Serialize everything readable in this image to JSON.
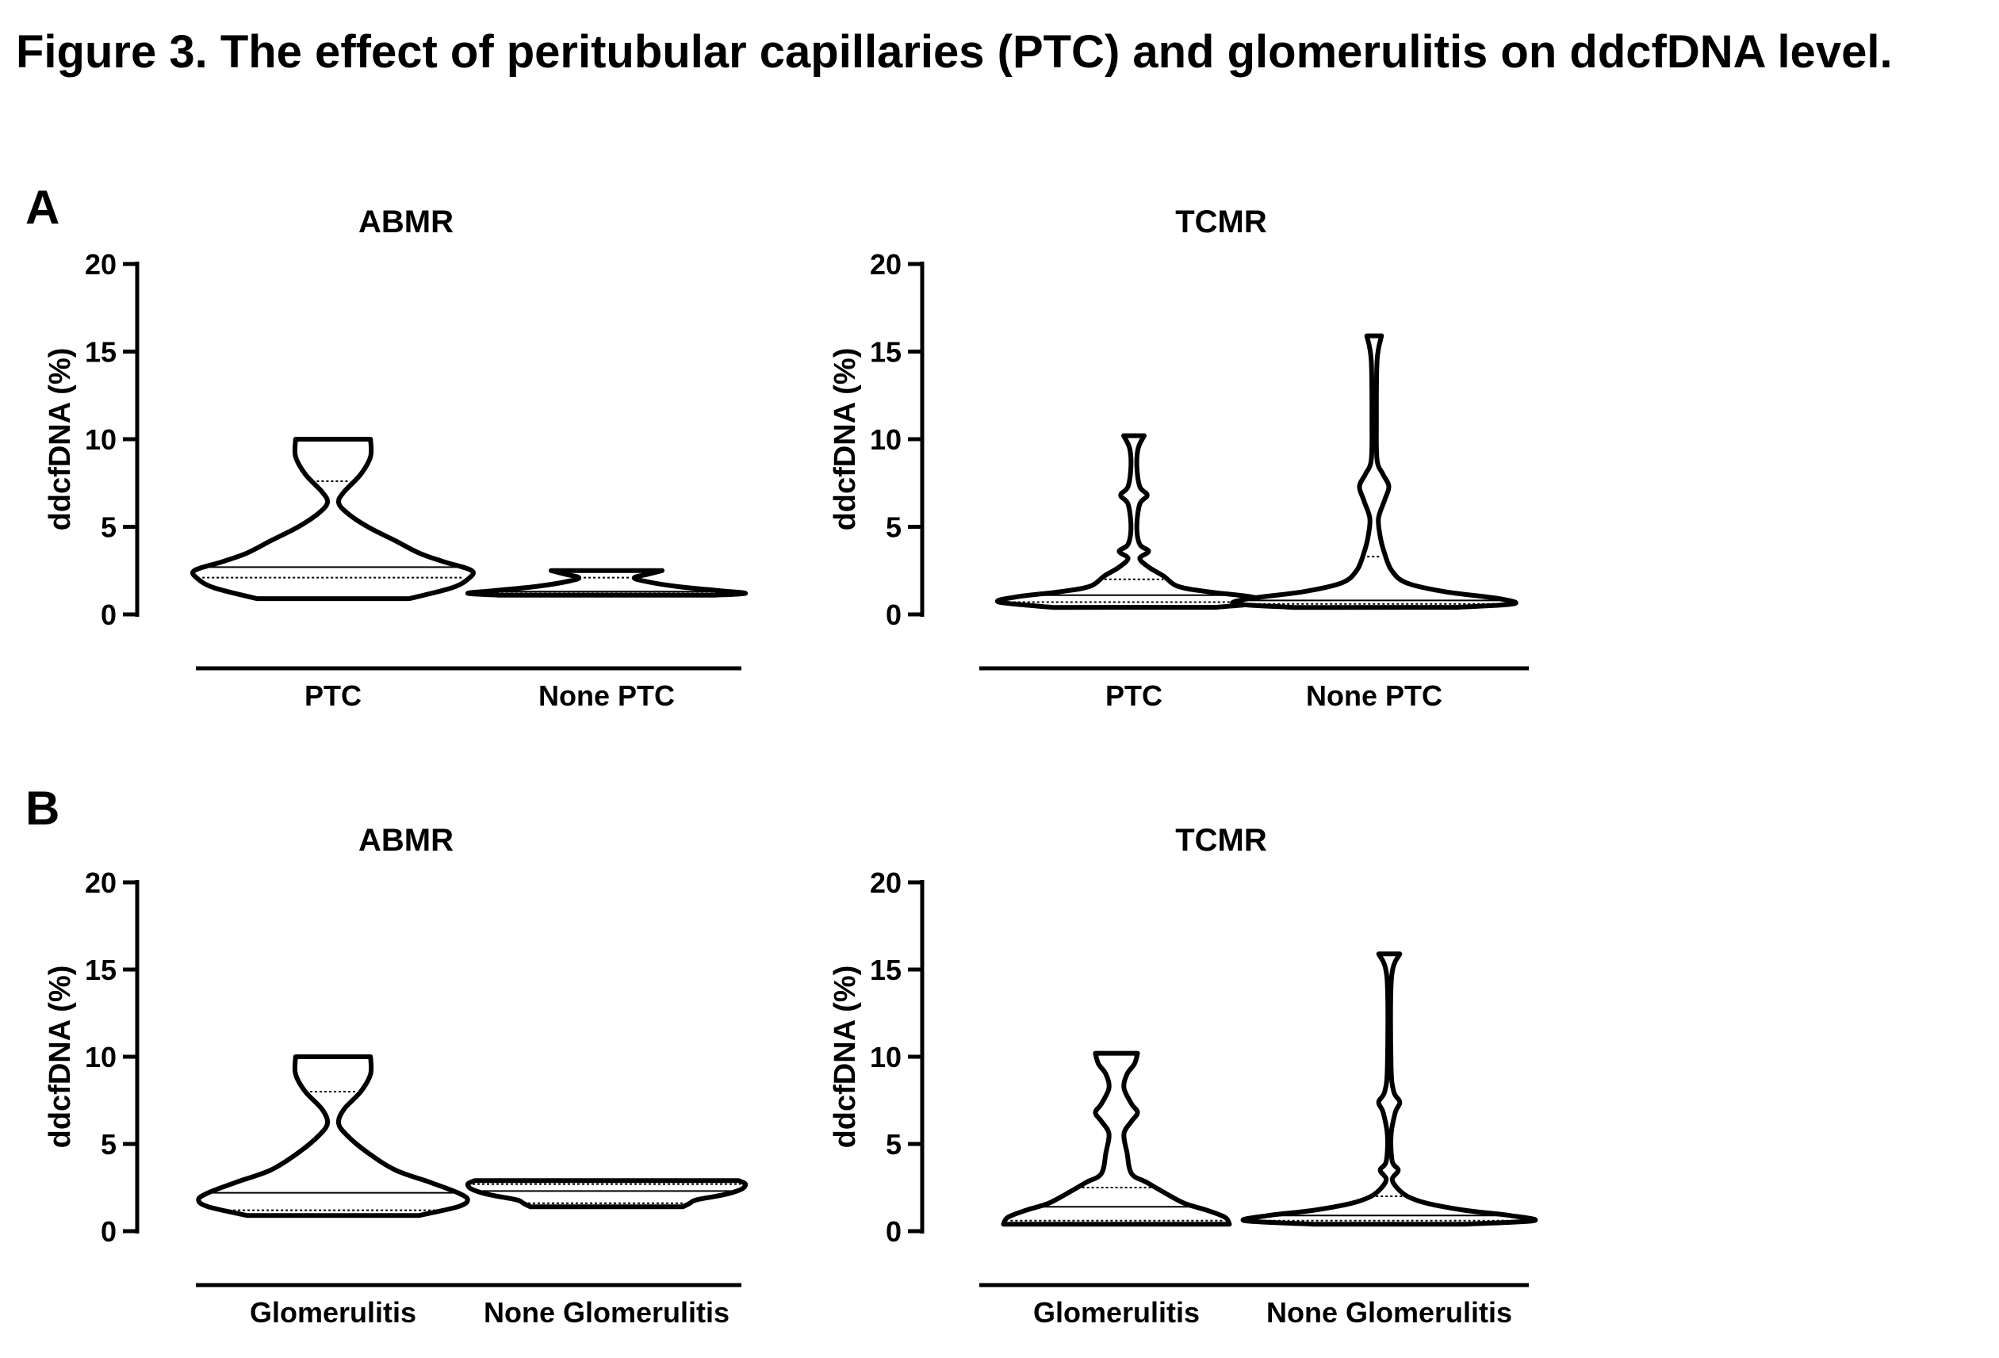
{
  "figure": {
    "title": "Figure 3. The effect of peritubular capillaries (PTC) and glomerulitis on ddcfDNA level."
  },
  "panels": [
    {
      "letter": "A"
    },
    {
      "letter": "B"
    }
  ],
  "chart_data": [
    {
      "type": "violin",
      "panel": "A",
      "title": "ABMR",
      "ylabel": "ddcfDNA  (%)",
      "ylim": [
        0,
        20
      ],
      "yticks": [
        0,
        5,
        10,
        15,
        20
      ],
      "categories": [
        "PTC",
        "None PTC"
      ],
      "series": [
        {
          "category": "PTC",
          "min": 0.9,
          "max": 10.0,
          "median": 2.7,
          "q1": 2.1,
          "q3": 7.6,
          "density": [
            [
              0.9,
              0.55
            ],
            [
              1.5,
              0.85
            ],
            [
              2.0,
              0.97
            ],
            [
              2.5,
              1.0
            ],
            [
              3.0,
              0.8
            ],
            [
              3.5,
              0.62
            ],
            [
              4.2,
              0.45
            ],
            [
              5.0,
              0.25
            ],
            [
              5.8,
              0.1
            ],
            [
              6.4,
              0.04
            ],
            [
              7.0,
              0.08
            ],
            [
              8.0,
              0.2
            ],
            [
              9.0,
              0.27
            ],
            [
              10.0,
              0.27
            ]
          ]
        },
        {
          "category": "None PTC",
          "min": 1.1,
          "max": 2.5,
          "median": 1.3,
          "q1": 1.2,
          "q3": 2.1,
          "density": [
            [
              1.1,
              0.78
            ],
            [
              1.2,
              1.0
            ],
            [
              1.35,
              0.82
            ],
            [
              1.6,
              0.5
            ],
            [
              1.9,
              0.27
            ],
            [
              2.1,
              0.2
            ],
            [
              2.3,
              0.3
            ],
            [
              2.5,
              0.4
            ]
          ]
        }
      ]
    },
    {
      "type": "violin",
      "panel": "A",
      "title": "TCMR",
      "ylabel": "ddcfDNA  (%)",
      "ylim": [
        0,
        20
      ],
      "yticks": [
        0,
        5,
        10,
        15,
        20
      ],
      "categories": [
        "PTC",
        "None PTC"
      ],
      "series": [
        {
          "category": "PTC",
          "min": 0.4,
          "max": 10.2,
          "median": 1.1,
          "q1": 0.7,
          "q3": 2.0,
          "density": [
            [
              0.4,
              0.55
            ],
            [
              0.7,
              0.92
            ],
            [
              1.0,
              0.8
            ],
            [
              1.3,
              0.5
            ],
            [
              1.6,
              0.3
            ],
            [
              2.2,
              0.2
            ],
            [
              2.7,
              0.1
            ],
            [
              3.2,
              0.04
            ],
            [
              3.6,
              0.1
            ],
            [
              4.0,
              0.04
            ],
            [
              5.0,
              0.02
            ],
            [
              6.3,
              0.04
            ],
            [
              6.8,
              0.09
            ],
            [
              7.3,
              0.04
            ],
            [
              8.5,
              0.02
            ],
            [
              9.5,
              0.03
            ],
            [
              10.2,
              0.07
            ]
          ]
        },
        {
          "category": "None PTC",
          "min": 0.4,
          "max": 15.9,
          "median": 0.8,
          "q1": 0.6,
          "q3": 3.3,
          "density": [
            [
              0.4,
              0.55
            ],
            [
              0.6,
              0.95
            ],
            [
              0.9,
              0.85
            ],
            [
              1.3,
              0.48
            ],
            [
              1.8,
              0.22
            ],
            [
              2.5,
              0.12
            ],
            [
              3.5,
              0.07
            ],
            [
              4.5,
              0.04
            ],
            [
              5.5,
              0.03
            ],
            [
              6.5,
              0.07
            ],
            [
              7.3,
              0.1
            ],
            [
              8.0,
              0.06
            ],
            [
              8.8,
              0.02
            ],
            [
              11.0,
              0.015
            ],
            [
              14.5,
              0.02
            ],
            [
              15.9,
              0.05
            ]
          ]
        }
      ]
    },
    {
      "type": "violin",
      "panel": "B",
      "title": "ABMR",
      "ylabel": "ddcfDNA  (%)",
      "ylim": [
        0,
        20
      ],
      "yticks": [
        0,
        5,
        10,
        15,
        20
      ],
      "categories": [
        "Glomerulitis",
        "None Glomerulitis"
      ],
      "series": [
        {
          "category": "Glomerulitis",
          "min": 0.9,
          "max": 10.0,
          "median": 2.2,
          "q1": 1.2,
          "q3": 8.0,
          "density": [
            [
              0.9,
              0.62
            ],
            [
              1.4,
              0.9
            ],
            [
              1.8,
              0.97
            ],
            [
              2.2,
              0.9
            ],
            [
              2.8,
              0.7
            ],
            [
              3.5,
              0.45
            ],
            [
              4.5,
              0.25
            ],
            [
              5.5,
              0.1
            ],
            [
              6.2,
              0.04
            ],
            [
              7.0,
              0.08
            ],
            [
              8.0,
              0.2
            ],
            [
              9.0,
              0.27
            ],
            [
              10.0,
              0.27
            ]
          ]
        },
        {
          "category": "None Glomerulitis",
          "min": 1.4,
          "max": 2.9,
          "median": 2.3,
          "q1": 1.6,
          "q3": 2.7,
          "density": [
            [
              1.4,
              0.55
            ],
            [
              1.6,
              0.6
            ],
            [
              1.8,
              0.65
            ],
            [
              2.1,
              0.85
            ],
            [
              2.4,
              0.97
            ],
            [
              2.7,
              1.0
            ],
            [
              2.9,
              0.95
            ]
          ]
        }
      ]
    },
    {
      "type": "violin",
      "panel": "B",
      "title": "TCMR",
      "ylabel": "ddcfDNA  (%)",
      "ylim": [
        0,
        20
      ],
      "yticks": [
        0,
        5,
        10,
        15,
        20
      ],
      "categories": [
        "Glomerulitis",
        "None Glomerulitis"
      ],
      "series": [
        {
          "category": "Glomerulitis",
          "min": 0.4,
          "max": 10.2,
          "median": 1.4,
          "q1": 0.6,
          "q3": 2.5,
          "density": [
            [
              0.4,
              0.75
            ],
            [
              0.8,
              0.72
            ],
            [
              1.2,
              0.6
            ],
            [
              1.6,
              0.45
            ],
            [
              2.2,
              0.32
            ],
            [
              2.8,
              0.2
            ],
            [
              3.3,
              0.1
            ],
            [
              4.5,
              0.07
            ],
            [
              5.6,
              0.05
            ],
            [
              6.3,
              0.1
            ],
            [
              6.8,
              0.14
            ],
            [
              7.3,
              0.1
            ],
            [
              8.2,
              0.05
            ],
            [
              9.0,
              0.07
            ],
            [
              9.6,
              0.12
            ],
            [
              10.2,
              0.14
            ]
          ]
        },
        {
          "category": "None Glomerulitis",
          "min": 0.4,
          "max": 15.9,
          "median": 0.9,
          "q1": 0.6,
          "q3": 2.0,
          "density": [
            [
              0.4,
              0.5
            ],
            [
              0.6,
              0.96
            ],
            [
              0.9,
              0.8
            ],
            [
              1.2,
              0.5
            ],
            [
              1.6,
              0.25
            ],
            [
              2.0,
              0.12
            ],
            [
              2.5,
              0.05
            ],
            [
              3.0,
              0.02
            ],
            [
              3.5,
              0.06
            ],
            [
              4.0,
              0.02
            ],
            [
              5.5,
              0.012
            ],
            [
              6.8,
              0.04
            ],
            [
              7.4,
              0.07
            ],
            [
              8.0,
              0.03
            ],
            [
              9.5,
              0.012
            ],
            [
              14.5,
              0.015
            ],
            [
              15.9,
              0.07
            ]
          ]
        }
      ]
    }
  ]
}
